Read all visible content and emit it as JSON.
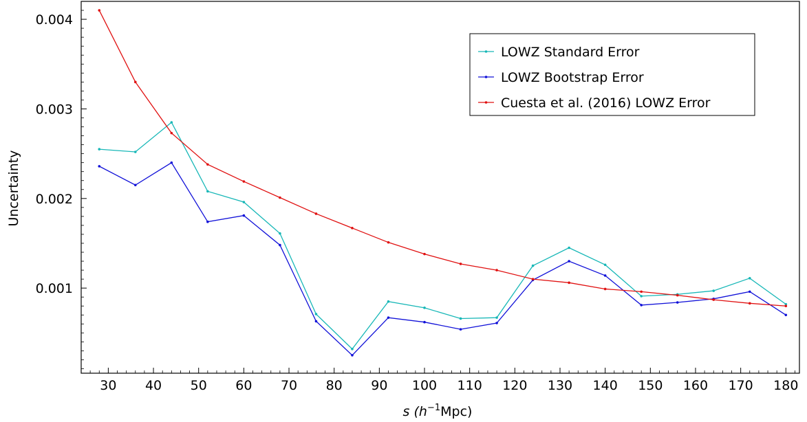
{
  "chart_data": {
    "type": "line",
    "xlabel_prefix": "s (h",
    "xlabel_sup": "−1",
    "xlabel_suffix": "Mpc)",
    "ylabel": "Uncertainty",
    "xlim": [
      24,
      183
    ],
    "ylim": [
      5e-05,
      0.0042
    ],
    "xticks": [
      30,
      40,
      50,
      60,
      70,
      80,
      90,
      100,
      110,
      120,
      130,
      140,
      150,
      160,
      170,
      180
    ],
    "xtick_labels": [
      "30",
      "40",
      "50",
      "60",
      "70",
      "80",
      "90",
      "100",
      "110",
      "120",
      "130",
      "140",
      "150",
      "160",
      "170",
      "180"
    ],
    "yticks": [
      0.001,
      0.002,
      0.003,
      0.004
    ],
    "ytick_labels": [
      "0.001",
      "0.002",
      "0.003",
      "0.004"
    ],
    "x": [
      28,
      36,
      44,
      52,
      60,
      68,
      76,
      84,
      92,
      100,
      108,
      116,
      124,
      132,
      140,
      148,
      156,
      164,
      172,
      180
    ],
    "legend_position": "top-right",
    "series": [
      {
        "name": "LOWZ Standard Error",
        "color": "#17b7b7",
        "values": [
          0.00255,
          0.00252,
          0.00285,
          0.00208,
          0.00196,
          0.00161,
          0.00071,
          0.00032,
          0.00085,
          0.00078,
          0.00066,
          0.00067,
          0.00125,
          0.00145,
          0.00126,
          0.00091,
          0.00093,
          0.00097,
          0.00111,
          0.00082
        ]
      },
      {
        "name": "LOWZ Bootstrap Error",
        "color": "#1010d8",
        "values": [
          0.00236,
          0.00215,
          0.0024,
          0.00174,
          0.00181,
          0.00148,
          0.00063,
          0.00025,
          0.00067,
          0.00062,
          0.00054,
          0.00061,
          0.00109,
          0.0013,
          0.00114,
          0.00081,
          0.00084,
          0.00088,
          0.00096,
          0.0007
        ]
      },
      {
        "name": "Cuesta et al. (2016) LOWZ Error",
        "color": "#e01010",
        "values": [
          0.0041,
          0.0033,
          0.00273,
          0.00238,
          0.00219,
          0.00201,
          0.00183,
          0.00167,
          0.00151,
          0.00138,
          0.00127,
          0.0012,
          0.0011,
          0.00106,
          0.00099,
          0.00096,
          0.00092,
          0.00087,
          0.00083,
          0.0008
        ]
      }
    ]
  }
}
